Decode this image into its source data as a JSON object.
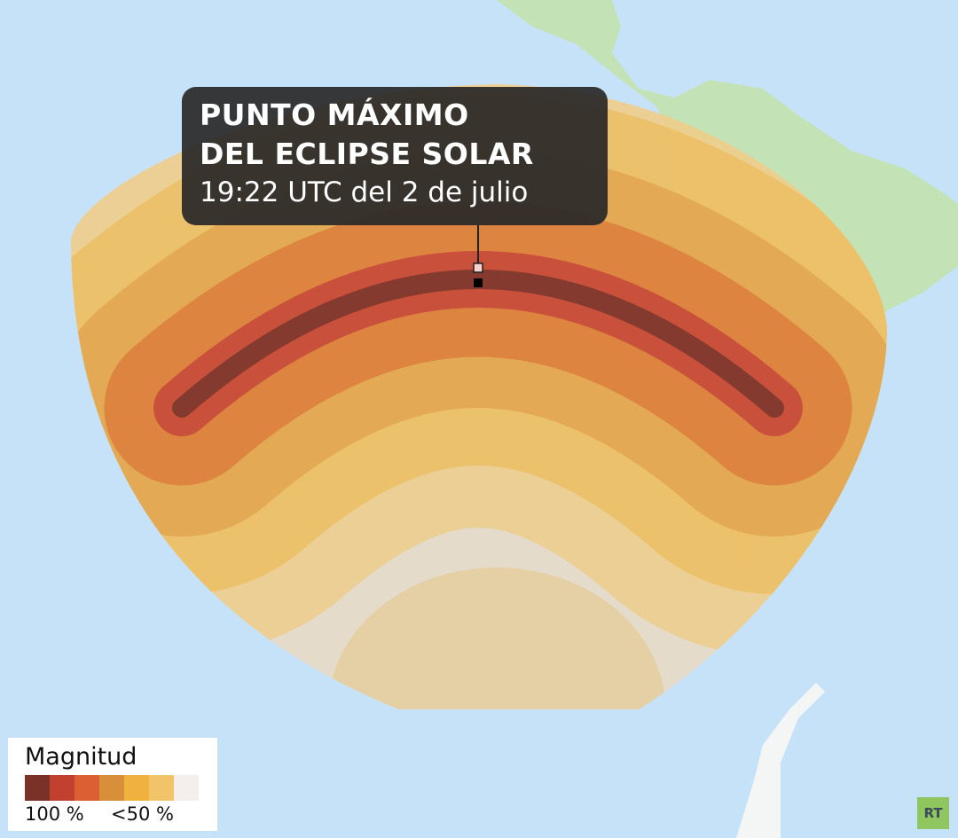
{
  "callout": {
    "title_line1": "PUNTO MÁXIMO",
    "title_line2": "DEL ECLIPSE SOLAR",
    "subtitle": "19:22 UTC del 2 de julio"
  },
  "legend": {
    "title": "Magnitud",
    "colors": [
      "#7a3128",
      "#c1402f",
      "#dc5e33",
      "#d98e3a",
      "#efb23e",
      "#f1c46a",
      "#f4eeec"
    ],
    "label_max": "100 %",
    "label_min": "<50 %"
  },
  "logo": {
    "text": "RT",
    "color": "#8fc660"
  },
  "colors": {
    "ocean": "#c6e2f8",
    "land": "#bfe0b3"
  }
}
